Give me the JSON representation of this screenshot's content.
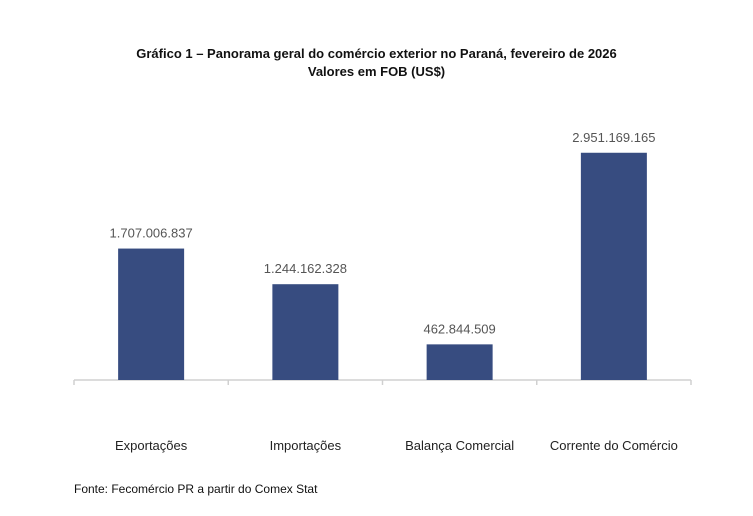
{
  "chart_data": {
    "type": "bar",
    "title": "Gráfico 1 – Panorama geral do comércio exterior no Paraná, fevereiro de 2026",
    "subtitle": "Valores em FOB (US$)",
    "categories": [
      "Exportações",
      "Importações",
      "Balança Comercial",
      "Corrente do Comércio"
    ],
    "values": [
      1707006837,
      1244162328,
      462844509,
      2951169165
    ],
    "data_labels": [
      "1.707.006.837",
      "1.244.162.328",
      "462.844.509",
      "2.951.169.165"
    ],
    "xlabel": "",
    "ylabel": "",
    "ylim": [
      0,
      3000000000
    ],
    "grid": false,
    "legend": "none",
    "bar_color": "#374C80",
    "source": "Fonte: Fecomércio PR a partir do Comex Stat"
  }
}
